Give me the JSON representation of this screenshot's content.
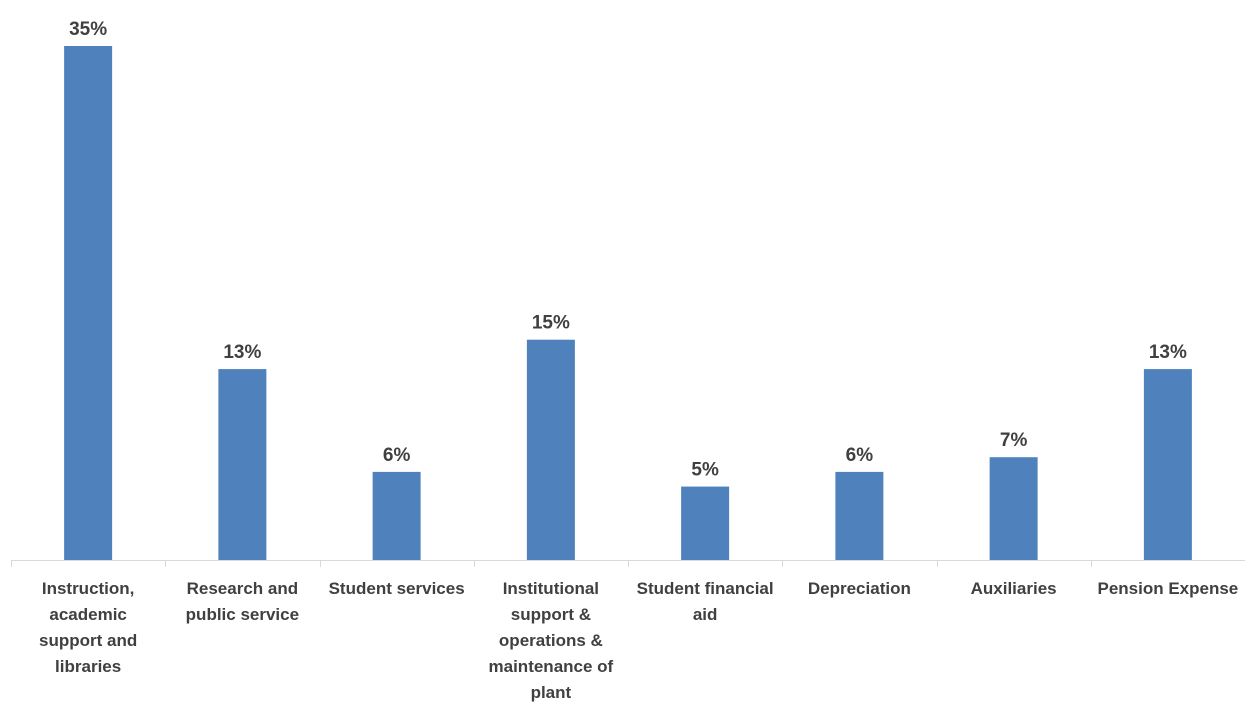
{
  "chart_data": {
    "type": "bar",
    "categories": [
      [
        "Instruction,",
        "academic",
        "support and",
        "libraries"
      ],
      [
        "Research and",
        "public service"
      ],
      [
        "Student services"
      ],
      [
        "Institutional",
        "support &",
        "operations &",
        "maintenance of",
        "plant"
      ],
      [
        "Student financial",
        "aid"
      ],
      [
        "Depreciation"
      ],
      [
        "Auxiliaries"
      ],
      [
        "Pension Expense"
      ]
    ],
    "values": [
      35,
      13,
      6,
      15,
      5,
      6,
      7,
      13
    ],
    "data_labels": [
      "35%",
      "13%",
      "6%",
      "15%",
      "5%",
      "6%",
      "7%",
      "13%"
    ],
    "unit": "%",
    "ylim": [
      0,
      35
    ],
    "grid": false,
    "legend": "none",
    "bar_color": "#4f81bd"
  }
}
